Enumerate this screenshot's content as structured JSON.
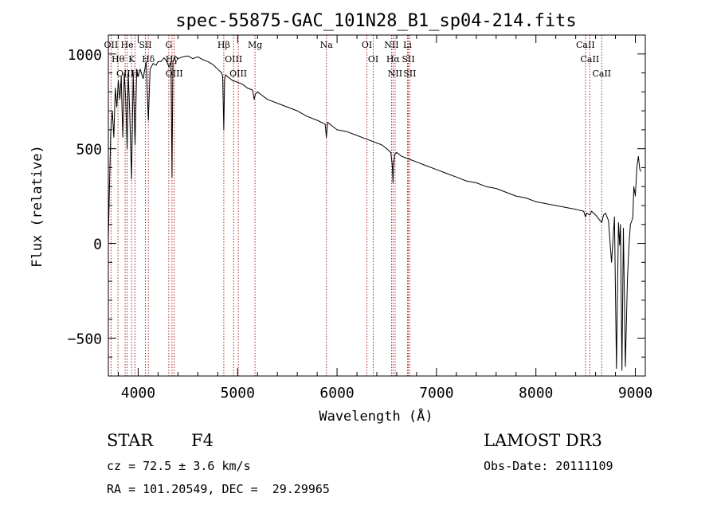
{
  "chart_data": {
    "type": "line",
    "title": "spec-55875-GAC_101N28_B1_sp04-214.fits",
    "xlabel": "Wavelength (Å)",
    "ylabel": "Flux (relative)",
    "xlim": [
      3700,
      9100
    ],
    "ylim": [
      -700,
      1100
    ],
    "x_ticks": [
      4000,
      5000,
      6000,
      7000,
      8000,
      9000
    ],
    "x_tick_labels": [
      "4000",
      "5000",
      "6000",
      "7000",
      "8000",
      "9000"
    ],
    "y_ticks": [
      -500,
      0,
      500,
      1000
    ],
    "y_tick_labels": [
      "−500",
      "0",
      "500",
      "1000"
    ],
    "series": [
      {
        "name": "flux",
        "x": [
          3700,
          3710,
          3725,
          3740,
          3755,
          3770,
          3785,
          3800,
          3815,
          3830,
          3845,
          3860,
          3875,
          3889,
          3900,
          3915,
          3933,
          3950,
          3968,
          3985,
          4000,
          4020,
          4050,
          4080,
          4102,
          4120,
          4150,
          4180,
          4200,
          4230,
          4260,
          4290,
          4310,
          4330,
          4340,
          4350,
          4370,
          4400,
          4450,
          4500,
          4550,
          4600,
          4650,
          4700,
          4750,
          4800,
          4840,
          4850,
          4861,
          4870,
          4880,
          4900,
          4950,
          5000,
          5050,
          5100,
          5150,
          5167,
          5175,
          5183,
          5200,
          5250,
          5300,
          5350,
          5400,
          5500,
          5600,
          5700,
          5800,
          5880,
          5893,
          5905,
          5950,
          6000,
          6100,
          6200,
          6300,
          6400,
          6450,
          6500,
          6540,
          6555,
          6563,
          6570,
          6580,
          6600,
          6650,
          6700,
          6800,
          6900,
          7000,
          7100,
          7200,
          7300,
          7400,
          7500,
          7600,
          7700,
          7800,
          7900,
          8000,
          8100,
          8200,
          8300,
          8400,
          8480,
          8498,
          8510,
          8542,
          8560,
          8600,
          8662,
          8680,
          8700,
          8730,
          8760,
          8790,
          8810,
          8830,
          8842,
          8850,
          8865,
          8880,
          8900,
          8920,
          8935,
          8950,
          8965,
          8975,
          8985,
          9000,
          9015,
          9030,
          9045,
          9060
        ],
        "values": [
          10,
          260,
          600,
          700,
          560,
          820,
          720,
          860,
          760,
          880,
          560,
          900,
          760,
          500,
          900,
          700,
          340,
          900,
          520,
          920,
          880,
          920,
          870,
          960,
          650,
          920,
          950,
          940,
          960,
          960,
          980,
          960,
          930,
          960,
          350,
          960,
          990,
          975,
          985,
          990,
          975,
          985,
          970,
          960,
          945,
          920,
          900,
          880,
          600,
          870,
          890,
          880,
          860,
          850,
          840,
          820,
          810,
          760,
          780,
          790,
          800,
          780,
          760,
          750,
          740,
          720,
          700,
          670,
          650,
          630,
          560,
          640,
          620,
          600,
          590,
          570,
          550,
          530,
          520,
          500,
          480,
          420,
          320,
          420,
          470,
          480,
          460,
          450,
          430,
          410,
          390,
          370,
          350,
          330,
          320,
          300,
          290,
          270,
          250,
          240,
          220,
          210,
          200,
          190,
          180,
          170,
          140,
          160,
          150,
          170,
          150,
          110,
          150,
          160,
          120,
          -100,
          140,
          -660,
          110,
          -10,
          100,
          -670,
          80,
          -650,
          -200,
          -20,
          100,
          120,
          140,
          300,
          250,
          400,
          460,
          390,
          380
        ]
      }
    ],
    "reference_lines": [
      {
        "label": "Hθ",
        "wavelength": 3797
      },
      {
        "label": "OII",
        "wavelength": 3727
      },
      {
        "label": "OIII",
        "wavelength": 3869
      },
      {
        "label": "K",
        "wavelength": 3934
      },
      {
        "label": "He",
        "wavelength": 3889
      },
      {
        "label": "H",
        "wavelength": 3968
      },
      {
        "label": "Hδ",
        "wavelength": 4102
      },
      {
        "label": "SII",
        "wavelength": 4072
      },
      {
        "label": "OIII",
        "wavelength": 4363
      },
      {
        "label": "Hγ",
        "wavelength": 4340
      },
      {
        "label": "G",
        "wavelength": 4308
      },
      {
        "label": "OIII",
        "wavelength": 5007
      },
      {
        "label": "OIII",
        "wavelength": 4959
      },
      {
        "label": "Hβ",
        "wavelength": 4861
      },
      {
        "label": "Mg",
        "wavelength": 5175
      },
      {
        "label": "Na",
        "wavelength": 5893
      },
      {
        "label": "OI",
        "wavelength": 6300
      },
      {
        "label": "OI",
        "wavelength": 6364
      },
      {
        "label": "Hα",
        "wavelength": 6563
      },
      {
        "label": "NII",
        "wavelength": 6548
      },
      {
        "label": "NII",
        "wavelength": 6584
      },
      {
        "label": "SII",
        "wavelength": 6717
      },
      {
        "label": "Li",
        "wavelength": 6708
      },
      {
        "label": "SII",
        "wavelength": 6731
      },
      {
        "label": "CaII",
        "wavelength": 8542
      },
      {
        "label": "CaII",
        "wavelength": 8498
      },
      {
        "label": "CaII",
        "wavelength": 8662
      }
    ]
  },
  "info": {
    "object_class": "STAR",
    "subclass": "F4",
    "survey": "LAMOST DR3",
    "redshift": "cz = 72.5 ± 3.6 km/s",
    "obs_date": "Obs-Date: 20111109",
    "coords": "RA = 101.20549, DEC =  29.29965"
  }
}
